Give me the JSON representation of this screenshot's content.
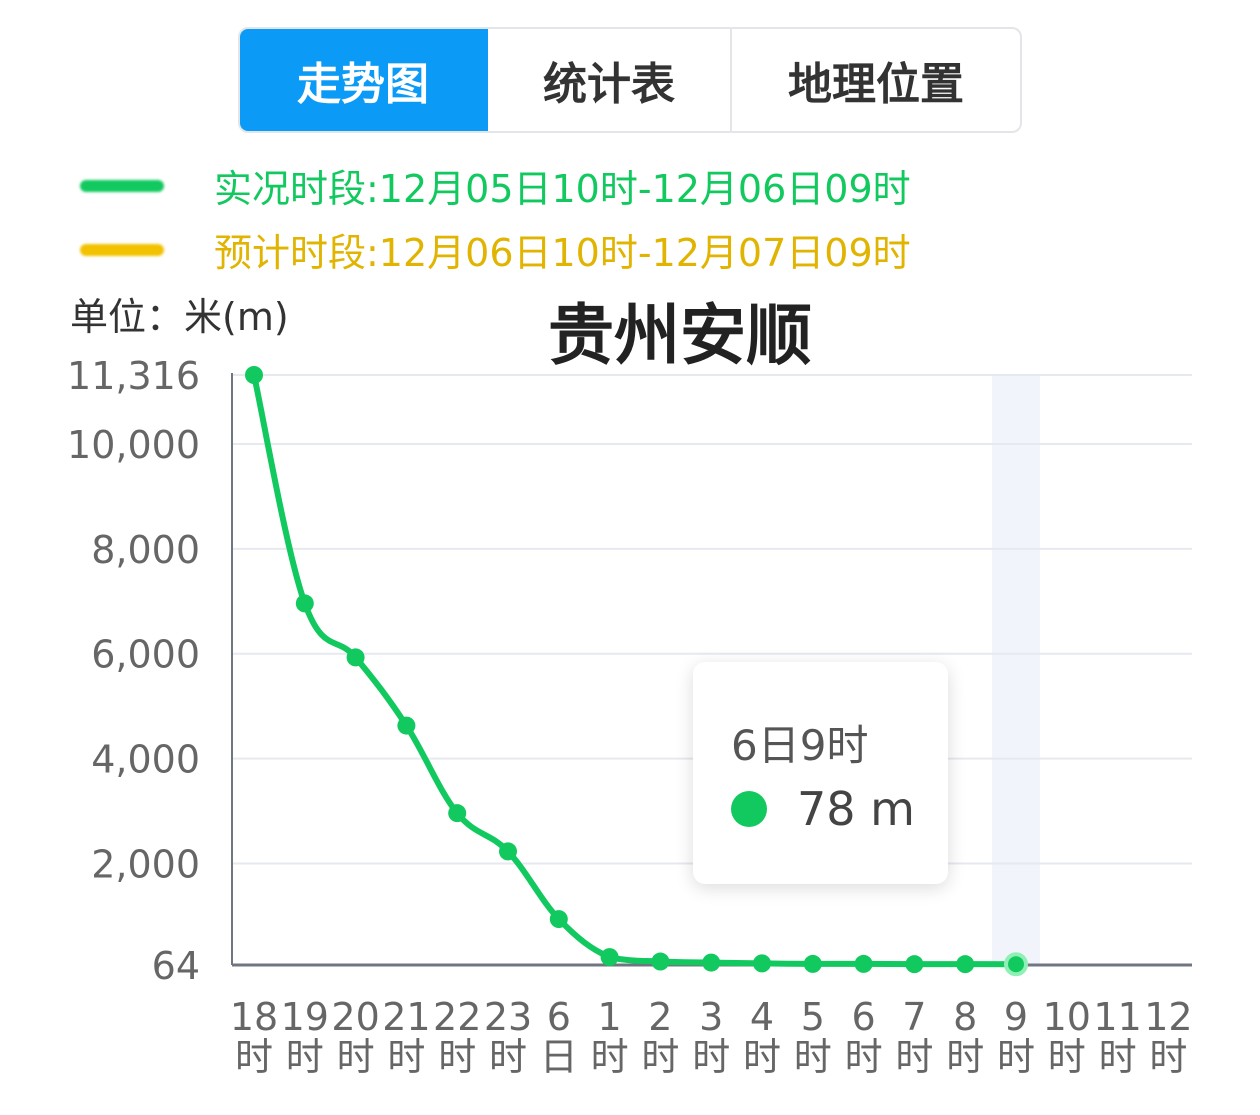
{
  "tabs": [
    {
      "label": "走势图",
      "active": true
    },
    {
      "label": "统计表",
      "active": false
    },
    {
      "label": "地理位置",
      "active": false
    }
  ],
  "legend": [
    {
      "text": "实况时段:12月05日10时-12月06日09时",
      "color": "#12c95f"
    },
    {
      "text": "预计时段:12月06日10时-12月07日09时",
      "color": "#f2c200"
    }
  ],
  "unit_label": "单位：米(m)",
  "chart_data": {
    "type": "line",
    "title": "贵州安顺",
    "ylabel": "单位：米(m)",
    "ylim": [
      64,
      11316
    ],
    "yticks": [
      "11,316",
      "10,000",
      "8,000",
      "6,000",
      "4,000",
      "2,000",
      "64"
    ],
    "ytick_values": [
      11316,
      10000,
      8000,
      6000,
      4000,
      2000,
      64
    ],
    "x_labels": [
      [
        "18",
        "时"
      ],
      [
        "19",
        "时"
      ],
      [
        "20",
        "时"
      ],
      [
        "21",
        "时"
      ],
      [
        "22",
        "时"
      ],
      [
        "23",
        "时"
      ],
      [
        "6",
        "日"
      ],
      [
        "1",
        "时"
      ],
      [
        "2",
        "时"
      ],
      [
        "3",
        "时"
      ],
      [
        "4",
        "时"
      ],
      [
        "5",
        "时"
      ],
      [
        "6",
        "时"
      ],
      [
        "7",
        "时"
      ],
      [
        "8",
        "时"
      ],
      [
        "9",
        "时"
      ],
      [
        "10",
        "时"
      ],
      [
        "11",
        "时"
      ],
      [
        "12",
        "时"
      ]
    ],
    "series": [
      {
        "values": [
          11316,
          6960,
          5930,
          4630,
          2960,
          2230,
          940,
          215,
          130,
          110,
          95,
          85,
          85,
          80,
          80,
          78
        ],
        "color": "#12c95f"
      }
    ],
    "highlight_index": 15,
    "grid": true
  },
  "tooltip": {
    "label": "6日9时",
    "value": "78 m",
    "color": "#12c95f"
  }
}
